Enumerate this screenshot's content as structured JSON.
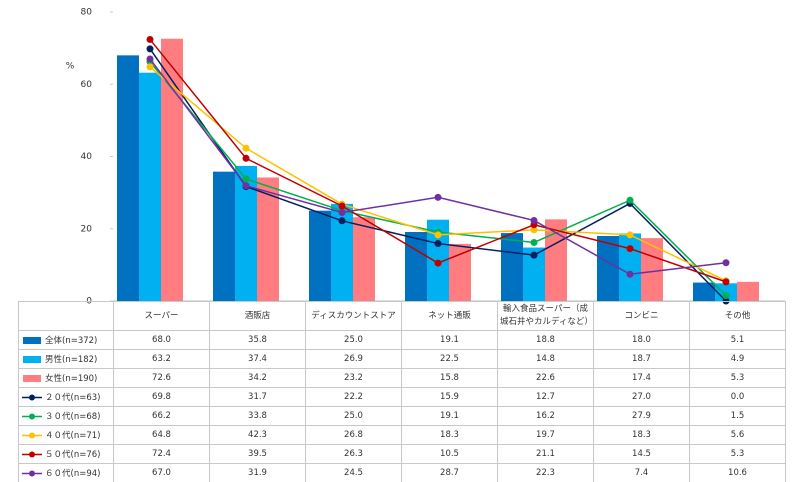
{
  "chart_data": {
    "type": "combo",
    "y_label": "%",
    "categories": [
      "スーパー",
      "酒販店",
      "ディスカウントストア",
      "ネット通販",
      "輸入食品スーパー（成城石井やカルディなど）",
      "コンビニ",
      "その他"
    ],
    "ylim": [
      0,
      80
    ],
    "yticks": [
      0,
      20,
      40,
      60,
      80
    ],
    "grid": false,
    "series": [
      {
        "name": "全体(n=372)",
        "type": "bar",
        "color": "#0070c0",
        "values": [
          68.0,
          35.8,
          25.0,
          19.1,
          18.8,
          18.0,
          5.1
        ],
        "value_labels": [
          "68.0",
          "35.8",
          "25.0",
          "19.1",
          "18.8",
          "18.0",
          "5.1"
        ]
      },
      {
        "name": "男性(n=182)",
        "type": "bar",
        "color": "#00b0f0",
        "values": [
          63.2,
          37.4,
          26.9,
          22.5,
          14.8,
          18.7,
          4.9
        ],
        "value_labels": [
          "63.2",
          "37.4",
          "26.9",
          "22.5",
          "14.8",
          "18.7",
          "4.9"
        ]
      },
      {
        "name": "女性(n=190)",
        "type": "bar",
        "color": "#ff7c80",
        "values": [
          72.6,
          34.2,
          23.2,
          15.8,
          22.6,
          17.4,
          5.3
        ],
        "value_labels": [
          "72.6",
          "34.2",
          "23.2",
          "15.8",
          "22.6",
          "17.4",
          "5.3"
        ]
      },
      {
        "name": "２０代(n=63)",
        "type": "line",
        "color": "#002060",
        "values": [
          69.8,
          31.7,
          22.2,
          15.9,
          12.7,
          27.0,
          0.0
        ],
        "value_labels": [
          "69.8",
          "31.7",
          "22.2",
          "15.9",
          "12.7",
          "27.0",
          "0.0"
        ]
      },
      {
        "name": "３０代(n=68)",
        "type": "line",
        "color": "#00b050",
        "values": [
          66.2,
          33.8,
          25.0,
          19.1,
          16.2,
          27.9,
          1.5
        ],
        "value_labels": [
          "66.2",
          "33.8",
          "25.0",
          "19.1",
          "16.2",
          "27.9",
          "1.5"
        ]
      },
      {
        "name": "４０代(n=71)",
        "type": "line",
        "color": "#ffc000",
        "values": [
          64.8,
          42.3,
          26.8,
          18.3,
          19.7,
          18.3,
          5.6
        ],
        "value_labels": [
          "64.8",
          "42.3",
          "26.8",
          "18.3",
          "19.7",
          "18.3",
          "5.6"
        ]
      },
      {
        "name": "５０代(n=76)",
        "type": "line",
        "color": "#c00000",
        "values": [
          72.4,
          39.5,
          26.3,
          10.5,
          21.1,
          14.5,
          5.3
        ],
        "value_labels": [
          "72.4",
          "39.5",
          "26.3",
          "10.5",
          "21.1",
          "14.5",
          "5.3"
        ]
      },
      {
        "name": "６０代(n=94)",
        "type": "line",
        "color": "#7030a0",
        "values": [
          67.0,
          31.9,
          24.5,
          28.7,
          22.3,
          7.4,
          10.6
        ],
        "value_labels": [
          "67.0",
          "31.9",
          "24.5",
          "28.7",
          "22.3",
          "7.4",
          "10.6"
        ]
      }
    ]
  }
}
